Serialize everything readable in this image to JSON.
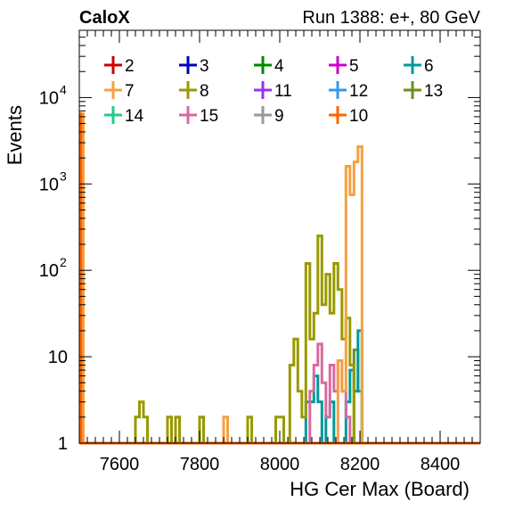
{
  "header": {
    "left": "CaloX",
    "right": "Run 1388: e+, 80 GeV"
  },
  "chart_data": {
    "type": "histogram-step",
    "xlabel": "HG Cer Max (Board)",
    "ylabel": "Events",
    "xlim": [
      7500,
      8500
    ],
    "ylim": [
      1,
      60000
    ],
    "log_y": true,
    "x_ticks": [
      7600,
      7800,
      8000,
      8200,
      8400
    ],
    "y_ticks": [
      {
        "value": 1,
        "label": "1"
      },
      {
        "value": 10,
        "label": "10"
      },
      {
        "value": 100,
        "label": "10",
        "exp": "2"
      },
      {
        "value": 1000,
        "label": "10",
        "exp": "3"
      },
      {
        "value": 10000,
        "label": "10",
        "exp": "4"
      }
    ],
    "grid": false,
    "legend": {
      "placement": "top",
      "columns": 5,
      "entries": [
        {
          "name": "2",
          "color": "#cc0000"
        },
        {
          "name": "3",
          "color": "#0000bb"
        },
        {
          "name": "4",
          "color": "#008800"
        },
        {
          "name": "5",
          "color": "#cc00cc"
        },
        {
          "name": "6",
          "color": "#009999"
        },
        {
          "name": "7",
          "color": "#f5a142"
        },
        {
          "name": "8",
          "color": "#999900"
        },
        {
          "name": "11",
          "color": "#9933ee"
        },
        {
          "name": "12",
          "color": "#3399ee"
        },
        {
          "name": "13",
          "color": "#6b8e23"
        },
        {
          "name": "14",
          "color": "#22cc88"
        },
        {
          "name": "15",
          "color": "#d66aa0"
        },
        {
          "name": "9",
          "color": "#999999"
        },
        {
          "name": "10",
          "color": "#ff6600"
        }
      ]
    },
    "series": [
      {
        "name": "13",
        "color": "#6b8e23",
        "points": [
          [
            8185,
            1
          ],
          [
            8185,
            12
          ],
          [
            8195,
            12
          ],
          [
            8195,
            4
          ],
          [
            8205,
            4
          ],
          [
            8205,
            1
          ]
        ]
      },
      {
        "name": "6",
        "color": "#009999",
        "points": [
          [
            8065,
            1
          ],
          [
            8065,
            3
          ],
          [
            8085,
            3
          ],
          [
            8085,
            6
          ],
          [
            8095,
            6
          ],
          [
            8095,
            3
          ],
          [
            8105,
            3
          ],
          [
            8105,
            1
          ],
          [
            8115,
            1
          ],
          [
            8115,
            2
          ],
          [
            8125,
            2
          ],
          [
            8125,
            3
          ],
          [
            8135,
            3
          ],
          [
            8135,
            1
          ],
          [
            8165,
            1
          ],
          [
            8165,
            3
          ],
          [
            8175,
            3
          ],
          [
            8175,
            7
          ],
          [
            8185,
            7
          ],
          [
            8185,
            4
          ],
          [
            8195,
            4
          ],
          [
            8195,
            20
          ],
          [
            8205,
            20
          ],
          [
            8205,
            1
          ]
        ]
      },
      {
        "name": "15",
        "color": "#d66aa0",
        "points": [
          [
            8075,
            1
          ],
          [
            8075,
            4
          ],
          [
            8085,
            4
          ],
          [
            8085,
            8
          ],
          [
            8095,
            8
          ],
          [
            8095,
            14
          ],
          [
            8105,
            14
          ],
          [
            8105,
            5
          ],
          [
            8115,
            5
          ],
          [
            8115,
            2
          ],
          [
            8125,
            2
          ],
          [
            8125,
            8
          ],
          [
            8135,
            8
          ],
          [
            8135,
            4
          ],
          [
            8145,
            4
          ],
          [
            8145,
            9
          ],
          [
            8155,
            9
          ],
          [
            8155,
            4
          ],
          [
            8165,
            4
          ],
          [
            8165,
            2
          ],
          [
            8175,
            2
          ],
          [
            8175,
            1
          ]
        ]
      },
      {
        "name": "8",
        "color": "#999900",
        "points": [
          [
            7500,
            1
          ],
          [
            7640,
            1
          ],
          [
            7640,
            2
          ],
          [
            7650,
            2
          ],
          [
            7650,
            3
          ],
          [
            7660,
            3
          ],
          [
            7660,
            2
          ],
          [
            7670,
            2
          ],
          [
            7670,
            1
          ],
          [
            7720,
            1
          ],
          [
            7720,
            2
          ],
          [
            7730,
            2
          ],
          [
            7730,
            1
          ],
          [
            7740,
            1
          ],
          [
            7740,
            2
          ],
          [
            7750,
            2
          ],
          [
            7750,
            1
          ],
          [
            7800,
            1
          ],
          [
            7800,
            2
          ],
          [
            7810,
            2
          ],
          [
            7810,
            1
          ],
          [
            7920,
            1
          ],
          [
            7920,
            2
          ],
          [
            7930,
            2
          ],
          [
            7930,
            1
          ],
          [
            7990,
            1
          ],
          [
            7990,
            2
          ],
          [
            8010,
            2
          ],
          [
            8010,
            1
          ],
          [
            8025,
            1
          ],
          [
            8025,
            8
          ],
          [
            8035,
            8
          ],
          [
            8035,
            16
          ],
          [
            8045,
            16
          ],
          [
            8045,
            4
          ],
          [
            8055,
            4
          ],
          [
            8055,
            2
          ],
          [
            8065,
            2
          ],
          [
            8065,
            120
          ],
          [
            8075,
            120
          ],
          [
            8075,
            16
          ],
          [
            8085,
            16
          ],
          [
            8085,
            32
          ],
          [
            8095,
            32
          ],
          [
            8095,
            250
          ],
          [
            8105,
            250
          ],
          [
            8105,
            40
          ],
          [
            8115,
            40
          ],
          [
            8115,
            90
          ],
          [
            8125,
            90
          ],
          [
            8125,
            32
          ],
          [
            8135,
            32
          ],
          [
            8135,
            120
          ],
          [
            8145,
            120
          ],
          [
            8145,
            60
          ],
          [
            8155,
            60
          ],
          [
            8155,
            16
          ],
          [
            8165,
            16
          ],
          [
            8165,
            28
          ],
          [
            8175,
            28
          ],
          [
            8175,
            8
          ],
          [
            8185,
            8
          ],
          [
            8185,
            1
          ],
          [
            8500,
            1
          ]
        ]
      },
      {
        "name": "7",
        "color": "#f5a142",
        "points": [
          [
            7500,
            6500
          ],
          [
            7510,
            6500
          ],
          [
            7510,
            1
          ],
          [
            7860,
            1
          ],
          [
            7860,
            2
          ],
          [
            7870,
            2
          ],
          [
            7870,
            1
          ],
          [
            8145,
            1
          ],
          [
            8145,
            9
          ],
          [
            8155,
            9
          ],
          [
            8155,
            4
          ],
          [
            8165,
            4
          ],
          [
            8165,
            1600
          ],
          [
            8175,
            1600
          ],
          [
            8175,
            750
          ],
          [
            8185,
            750
          ],
          [
            8185,
            1800
          ],
          [
            8195,
            1800
          ],
          [
            8195,
            2700
          ],
          [
            8205,
            2700
          ],
          [
            8205,
            1
          ],
          [
            8500,
            1
          ]
        ]
      },
      {
        "name": "10",
        "color": "#ff6600",
        "points": [
          [
            7500,
            6500
          ],
          [
            7504,
            6500
          ],
          [
            7504,
            1
          ],
          [
            8500,
            1
          ]
        ]
      }
    ]
  }
}
